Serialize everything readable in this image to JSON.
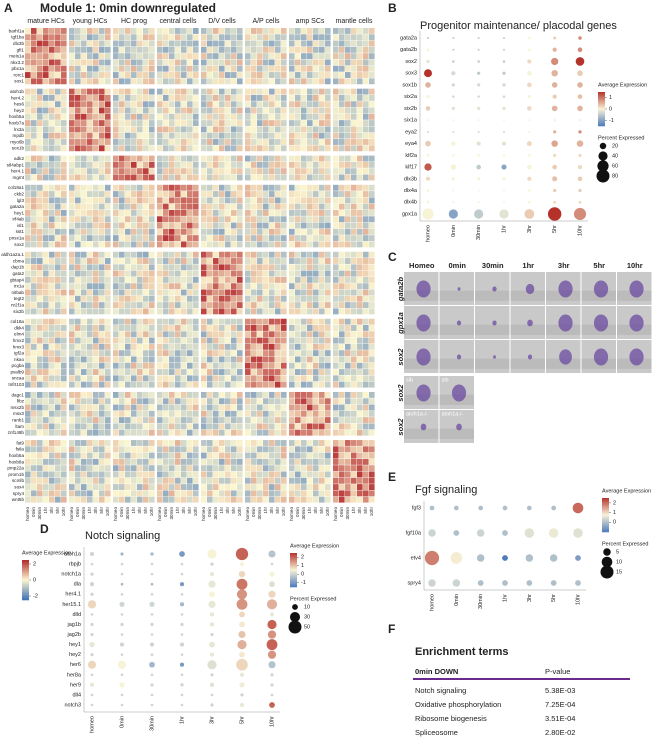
{
  "panel_labels": [
    "A",
    "B",
    "C",
    "D",
    "E",
    "F"
  ],
  "heatmap": {
    "title": "Module 1:     0min downregulated",
    "groups": [
      "mature HCs",
      "young HCs",
      "HC prog",
      "central cells",
      "D/V cells",
      "A/P cells",
      "amp SCs",
      "mantle cells"
    ],
    "timepoints": [
      "homeo",
      "0min",
      "30min",
      "1hr",
      "3hr",
      "5hr",
      "10hr"
    ],
    "blocks": [
      [
        "barhl1a",
        "tgf1ba",
        "dlx3b",
        "gfi1",
        "meis1a",
        "nkx3.2",
        "pbx1a",
        "rorc1",
        "sox1"
      ],
      [
        "atoh1b",
        "her4.2",
        "hes6",
        "hey2",
        "hoxb5a",
        "hoxb7a",
        "lrx3a",
        "mpdb",
        "myo6b",
        "sox1b"
      ],
      [
        "adk2",
        "stl4abp1",
        "her4.1",
        "mgmt"
      ],
      [
        "col18a1",
        "ckb2",
        "lgl3",
        "gata2a",
        "hey1",
        "irf4ab",
        "isl1",
        "sst1",
        "pnsx1a",
        "sox2"
      ],
      [
        "aldh1a2a.1",
        "cbma",
        "dap1b",
        "gata2",
        "gbtap4",
        "irx1a",
        "nitbab",
        "tegt2",
        "nr2f1a",
        "six2b"
      ],
      [
        "col18a",
        "dkk4",
        "elm4",
        "hmx2",
        "hmx3",
        "igf2a",
        "nkao",
        "pcgba",
        "pvalb9",
        "sncaa",
        "tnfrt103"
      ],
      [
        "dagc1",
        "fibz",
        "msx2b",
        "msx3",
        "ranb1",
        "ltam",
        "znf148b"
      ],
      [
        "fat9",
        "fstla",
        "hoxb5a",
        "hoxb8a",
        "pmp22a",
        "prom1b",
        "scmlb",
        "sox4",
        "spry4",
        "wnt5b"
      ]
    ],
    "color_label": "Average Expression",
    "clim": [
      -2.5,
      2.5
    ],
    "cticks": [
      2,
      0,
      -2
    ],
    "colors": [
      "#3f6fb5",
      "#fbf6cf",
      "#b3262a"
    ]
  },
  "progenitor": {
    "type": "dotplot",
    "title": "Progenitor maintenance/ placodal genes",
    "categories": [
      "homeo",
      "0min",
      "30min",
      "1hr",
      "3hr",
      "5hr",
      "10hr"
    ],
    "genes": [
      "gata2a",
      "gata2b",
      "sox2",
      "sox3",
      "sox1b",
      "six2a",
      "six2b",
      "six1a",
      "eya2",
      "eya4",
      "klf2a",
      "klf17",
      "dlx3b",
      "dlx4a",
      "dlx4b",
      "gpx1a"
    ],
    "pct": [
      [
        2,
        2,
        2,
        2,
        3,
        4,
        6
      ],
      [
        3,
        2,
        2,
        2,
        3,
        8,
        10
      ],
      [
        5,
        3,
        3,
        3,
        8,
        25,
        35
      ],
      [
        30,
        8,
        5,
        5,
        10,
        20,
        15
      ],
      [
        15,
        5,
        5,
        5,
        10,
        15,
        15
      ],
      [
        5,
        3,
        3,
        3,
        5,
        8,
        10
      ],
      [
        10,
        5,
        5,
        5,
        10,
        15,
        15
      ],
      [
        2,
        2,
        2,
        2,
        2,
        3,
        3
      ],
      [
        2,
        2,
        2,
        2,
        2,
        5,
        5
      ],
      [
        15,
        10,
        8,
        8,
        12,
        20,
        20
      ],
      [
        3,
        3,
        3,
        3,
        3,
        5,
        5
      ],
      [
        25,
        15,
        10,
        12,
        10,
        10,
        8
      ],
      [
        8,
        5,
        5,
        5,
        8,
        12,
        10
      ],
      [
        3,
        2,
        2,
        2,
        3,
        5,
        5
      ],
      [
        3,
        2,
        2,
        2,
        3,
        4,
        4
      ],
      [
        60,
        40,
        40,
        40,
        45,
        85,
        70
      ]
    ],
    "avg": [
      [
        -0.5,
        -0.5,
        -0.5,
        -0.5,
        0,
        0.3,
        0.8
      ],
      [
        0,
        -0.5,
        -0.5,
        -0.5,
        0,
        0.5,
        0.8
      ],
      [
        -0.2,
        -0.5,
        -0.5,
        -0.5,
        0.2,
        0.8,
        1.5
      ],
      [
        1.5,
        -0.3,
        -0.5,
        -0.5,
        0,
        0.5,
        0.3
      ],
      [
        0.5,
        -0.3,
        -0.3,
        -0.3,
        0.2,
        0.5,
        0.5
      ],
      [
        0,
        -0.3,
        -0.3,
        -0.3,
        0,
        0.3,
        0.4
      ],
      [
        0.3,
        -0.2,
        -0.2,
        -0.2,
        0.2,
        0.5,
        0.5
      ],
      [
        0,
        0,
        0,
        0,
        0,
        0,
        0
      ],
      [
        -0.3,
        -0.3,
        -0.3,
        -0.3,
        0,
        0.5,
        0.8
      ],
      [
        0.3,
        0,
        -0.2,
        -0.2,
        0.2,
        0.6,
        0.5
      ],
      [
        0,
        0,
        0,
        0,
        0,
        0.2,
        0.2
      ],
      [
        1.2,
        0,
        -0.5,
        -1,
        0,
        0.3,
        0.2
      ],
      [
        0.2,
        0,
        0,
        0,
        0.2,
        0.4,
        0.3
      ],
      [
        0,
        0,
        0,
        0,
        0,
        0.3,
        0.3
      ],
      [
        0,
        0,
        0,
        0,
        0,
        0.2,
        0.2
      ],
      [
        0,
        -1,
        -0.5,
        -0.2,
        0.3,
        1.5,
        0.8
      ]
    ],
    "color_label": "Average Expression",
    "clim": [
      -1.5,
      1.5
    ],
    "cticks": [
      1,
      0,
      -1
    ],
    "size_label": "Percent Expressed",
    "size_ticks": [
      20,
      40,
      60,
      80
    ],
    "colors": [
      "#4f7bbd",
      "#f7f3d6",
      "#b5322a"
    ]
  },
  "images": {
    "columns": [
      "Homeo",
      "0min",
      "30min",
      "1hr",
      "3hr",
      "5hr",
      "10hr"
    ],
    "rows": [
      "gata2b",
      "gpx1a",
      "sox2",
      "sox2",
      "sox2"
    ],
    "insets": [
      "sib",
      "sib",
      "atoh1a-/-",
      "atoh1a-/-"
    ]
  },
  "notch": {
    "type": "dotplot",
    "title": "Notch signaling",
    "categories": [
      "homeo",
      "0min",
      "30min",
      "1hr",
      "3hr",
      "5hr",
      "10hr"
    ],
    "genes": [
      "atoh1a",
      "rbpjb",
      "notch1a",
      "dla",
      "her4.1",
      "her15.1",
      "dlld",
      "jag1b",
      "jag2b",
      "hey1",
      "hey2",
      "her6",
      "her8a",
      "her9",
      "dll4",
      "notch3"
    ],
    "pct": [
      [
        5,
        3,
        3,
        10,
        25,
        45,
        15
      ],
      [
        2,
        2,
        2,
        2,
        3,
        5,
        2
      ],
      [
        3,
        2,
        2,
        2,
        5,
        12,
        8
      ],
      [
        5,
        2,
        2,
        5,
        15,
        35,
        10
      ],
      [
        3,
        2,
        2,
        2,
        10,
        30,
        15
      ],
      [
        20,
        8,
        8,
        5,
        15,
        35,
        30
      ],
      [
        2,
        2,
        2,
        2,
        5,
        10,
        5
      ],
      [
        3,
        3,
        3,
        3,
        5,
        10,
        25
      ],
      [
        3,
        2,
        2,
        2,
        3,
        15,
        20
      ],
      [
        8,
        5,
        5,
        5,
        10,
        25,
        35
      ],
      [
        3,
        2,
        2,
        2,
        5,
        10,
        20
      ],
      [
        20,
        20,
        10,
        5,
        25,
        40,
        15
      ],
      [
        2,
        2,
        2,
        2,
        3,
        5,
        3
      ],
      [
        5,
        8,
        3,
        3,
        5,
        8,
        3
      ],
      [
        2,
        2,
        2,
        2,
        2,
        3,
        2
      ],
      [
        2,
        2,
        2,
        2,
        3,
        5,
        10
      ]
    ],
    "avg": [
      [
        0,
        -0.5,
        -0.5,
        -1,
        0.5,
        2,
        -0.3
      ],
      [
        0,
        0,
        0,
        0,
        0,
        0.5,
        0
      ],
      [
        0,
        0,
        0,
        0,
        0.3,
        0.8,
        0.5
      ],
      [
        0,
        -0.5,
        -0.5,
        -1,
        0.3,
        1.8,
        0.2
      ],
      [
        0,
        0,
        0,
        0,
        0.5,
        1.5,
        0.8
      ],
      [
        0.8,
        0,
        0,
        -0.5,
        0.3,
        1.5,
        1.2
      ],
      [
        0,
        0,
        0,
        0,
        0.3,
        0.8,
        0.3
      ],
      [
        0,
        0,
        0,
        0,
        0.3,
        0.6,
        2
      ],
      [
        0,
        0,
        0,
        0,
        0,
        1,
        1.5
      ],
      [
        0.3,
        0,
        0,
        0,
        0.3,
        1.2,
        2
      ],
      [
        0,
        0,
        0,
        0,
        0.3,
        0.6,
        1.5
      ],
      [
        0.8,
        0.5,
        -0.5,
        -1,
        0.2,
        0.8,
        -0.3
      ],
      [
        0,
        0,
        0,
        0,
        0,
        0.3,
        0
      ],
      [
        0.3,
        0.5,
        0,
        0,
        0.2,
        0.4,
        0
      ],
      [
        0,
        0,
        0,
        0,
        0,
        0,
        0
      ],
      [
        0,
        0,
        0,
        0,
        0,
        0.3,
        2
      ]
    ],
    "color_label": "Average Expression",
    "clim": [
      -1.5,
      2.5
    ],
    "cticks": [
      2,
      1,
      0,
      -1
    ],
    "size_label": "Percent Expressed",
    "size_ticks": [
      10,
      30,
      50
    ],
    "colors": [
      "#4f7bbd",
      "#f7f3d6",
      "#b5322a"
    ]
  },
  "fgf": {
    "type": "dotplot",
    "title": "Fgf signaling",
    "categories": [
      "homeo",
      "0min",
      "30min",
      "1hr",
      "3hr",
      "5hr",
      "10hr"
    ],
    "genes": [
      "fgf3",
      "fgf10a",
      "etv4",
      "spry4"
    ],
    "pct": [
      [
        2,
        2,
        2,
        2,
        2,
        2,
        10
      ],
      [
        5,
        3,
        5,
        3,
        8,
        8,
        8
      ],
      [
        18,
        12,
        5,
        3,
        5,
        5,
        3
      ],
      [
        5,
        5,
        3,
        3,
        3,
        3,
        3
      ]
    ],
    "avg": [
      [
        0,
        0,
        0,
        0,
        0,
        0,
        2
      ],
      [
        0.3,
        0,
        0.3,
        0,
        0.5,
        0.6,
        0.5
      ],
      [
        1.8,
        0.8,
        0,
        -1,
        0,
        0,
        -0.5
      ],
      [
        0.3,
        0.3,
        0,
        0,
        0,
        0,
        0
      ]
    ],
    "color_label": "Average Expression",
    "clim": [
      -1,
      2.5
    ],
    "cticks": [
      2,
      1,
      0
    ],
    "size_label": "Percent Expressed",
    "size_ticks": [
      5,
      10,
      15
    ],
    "colors": [
      "#4f7bbd",
      "#f7f3d6",
      "#b5322a"
    ]
  },
  "enrichment": {
    "title": "Enrichment terms",
    "header": [
      "0min DOWN",
      "P-value"
    ],
    "rows": [
      [
        "Notch signaling",
        "5.38E-03"
      ],
      [
        "Oxidative phosphorylation",
        "7.25E-04"
      ],
      [
        "Ribosome biogenesis",
        "3.51E-04"
      ],
      [
        "Spliceosome",
        "2.80E-02"
      ]
    ]
  }
}
